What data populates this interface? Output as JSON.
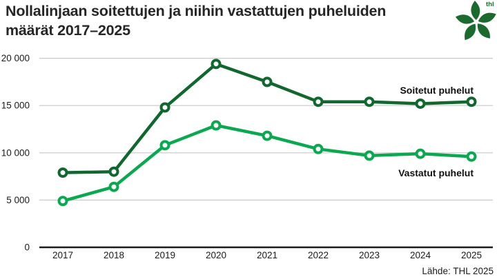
{
  "logo": {
    "text": "thl",
    "color": "#1b6b2f"
  },
  "source": "Lähde: THL 2025",
  "style": {
    "background": "#ffffff",
    "grid_color": "#c9c9c9",
    "axis_color": "#1a1a1a",
    "tick_color": "#1a1a1a",
    "title_color": "#262626",
    "series_label_color": "#111111"
  },
  "chart_data": {
    "type": "line",
    "title": "Nollalinjaan soitettujen ja niihin vastattujen puheluiden määrät 2017–2025",
    "categories": [
      "2017",
      "2018",
      "2019",
      "2020",
      "2021",
      "2022",
      "2023",
      "2024",
      "2025"
    ],
    "series": [
      {
        "name": "Soitetut puhelut",
        "color": "#10682e",
        "values": [
          7900,
          8000,
          14800,
          19400,
          17500,
          15400,
          15400,
          15200,
          15400
        ]
      },
      {
        "name": "Vastatut puhelut",
        "color": "#0aa84f",
        "values": [
          4900,
          6400,
          10800,
          12900,
          11800,
          10400,
          9700,
          9900,
          9600
        ]
      }
    ],
    "xlabel": "",
    "ylabel": "",
    "ylim": [
      0,
      20000
    ],
    "yticks": [
      {
        "value": 0,
        "label": "0"
      },
      {
        "value": 5000,
        "label": "5 000"
      },
      {
        "value": 10000,
        "label": "10 000"
      },
      {
        "value": 15000,
        "label": "15 000"
      },
      {
        "value": 20000,
        "label": "20 000"
      }
    ],
    "grid": true,
    "legend_position": "inline-labels-right",
    "marker": "open-circle"
  }
}
